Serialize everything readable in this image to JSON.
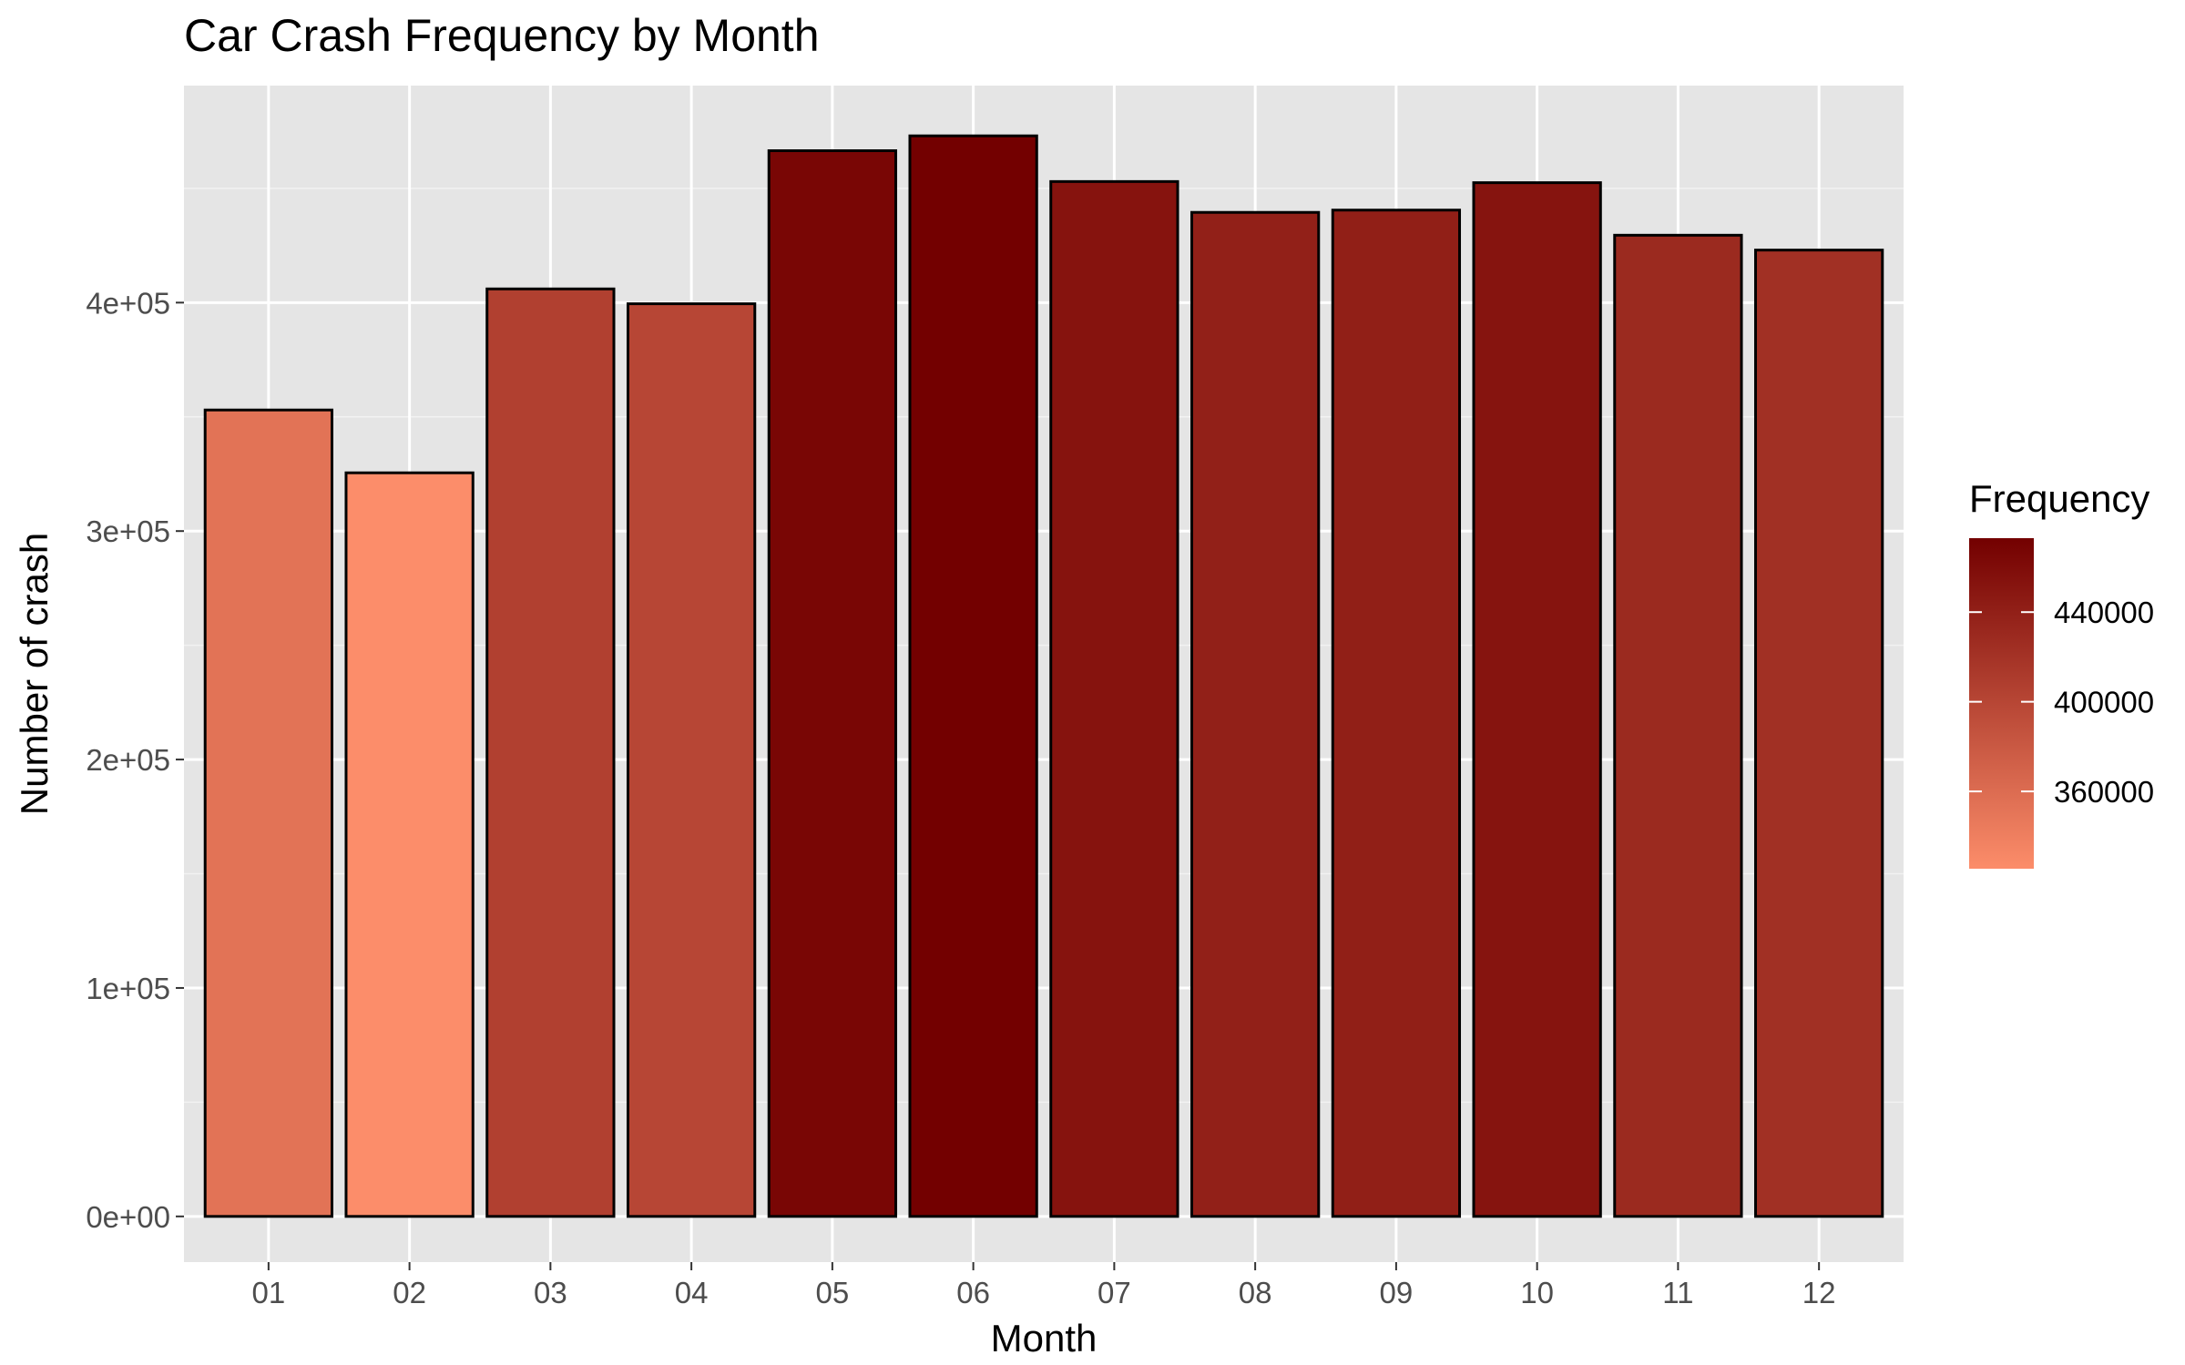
{
  "chart_data": {
    "type": "bar",
    "title": "Car Crash Frequency by Month",
    "xlabel": "Month",
    "ylabel": "Number of crash",
    "categories": [
      "01",
      "02",
      "03",
      "04",
      "05",
      "06",
      "07",
      "08",
      "09",
      "10",
      "11",
      "12"
    ],
    "values": [
      353000,
      325500,
      406000,
      399500,
      466500,
      473000,
      453000,
      439500,
      440500,
      452500,
      429500,
      423000
    ],
    "ylim": [
      -20000,
      495000
    ],
    "yticks": [
      0,
      100000,
      200000,
      300000,
      400000
    ],
    "ytick_labels": [
      "0e+00",
      "1e+05",
      "2e+05",
      "3e+05",
      "4e+05"
    ],
    "grid": true,
    "panel_color": "#e5e5e5",
    "bar_outline_color": "#000000",
    "legend": {
      "title": "Frequency",
      "position": "right",
      "ticks": [
        360000,
        400000,
        440000
      ],
      "tick_labels": [
        "360000",
        "400000",
        "440000"
      ],
      "range": [
        325500,
        473000
      ],
      "color_low": "#fc8d6a",
      "color_high": "#730000"
    }
  }
}
